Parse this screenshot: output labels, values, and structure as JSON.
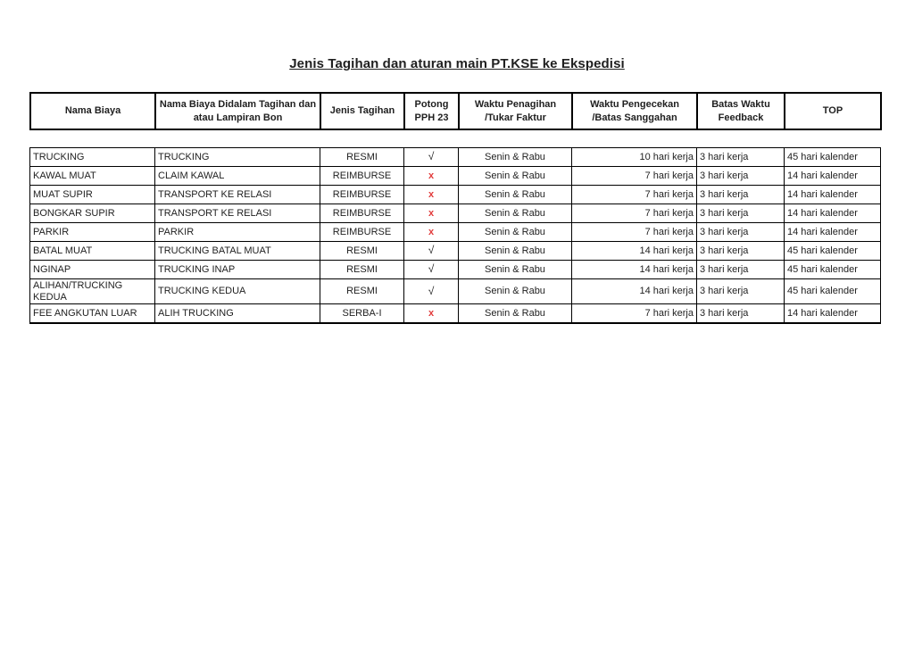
{
  "title": "Jenis Tagihan dan aturan main PT.KSE ke Ekspedisi",
  "colors": {
    "mark_cross_red": "#e23c3c",
    "text": "#1f1f1f",
    "border": "#000000"
  },
  "table": {
    "columns": [
      {
        "label": "Nama Biaya"
      },
      {
        "label": "Nama Biaya Didalam Tagihan dan atau Lampiran Bon"
      },
      {
        "label": "Jenis Tagihan"
      },
      {
        "label": "Potong PPH 23"
      },
      {
        "label": "Waktu Penagihan /Tukar Faktur"
      },
      {
        "label": "Waktu Pengecekan /Batas Sanggahan"
      },
      {
        "label": "Batas Waktu Feedback"
      },
      {
        "label": "TOP"
      }
    ],
    "rows": [
      {
        "cells": [
          "TRUCKING",
          "TRUCKING",
          "RESMI",
          "√",
          "Senin & Rabu",
          "10 hari kerja",
          "3 hari kerja",
          "45 hari kalender"
        ]
      },
      {
        "cells": [
          "KAWAL MUAT",
          "CLAIM KAWAL",
          "REIMBURSE",
          "x",
          "Senin & Rabu",
          "7 hari kerja",
          "3 hari kerja",
          "14 hari kalender"
        ]
      },
      {
        "cells": [
          "MUAT SUPIR",
          "TRANSPORT KE RELASI",
          "REIMBURSE",
          "x",
          "Senin & Rabu",
          "7 hari kerja",
          "3 hari kerja",
          "14 hari kalender"
        ]
      },
      {
        "cells": [
          "BONGKAR SUPIR",
          "TRANSPORT KE RELASI",
          "REIMBURSE",
          "x",
          "Senin & Rabu",
          "7 hari kerja",
          "3 hari kerja",
          "14 hari kalender"
        ]
      },
      {
        "cells": [
          "PARKIR",
          "PARKIR",
          "REIMBURSE",
          "x",
          "Senin & Rabu",
          "7 hari kerja",
          "3 hari kerja",
          "14 hari kalender"
        ]
      },
      {
        "cells": [
          "BATAL MUAT",
          "TRUCKING BATAL MUAT",
          "RESMI",
          "√",
          "Senin & Rabu",
          "14 hari kerja",
          "3 hari kerja",
          "45 hari kalender"
        ]
      },
      {
        "cells": [
          "NGINAP",
          "TRUCKING INAP",
          "RESMI",
          "√",
          "Senin & Rabu",
          "14 hari kerja",
          "3 hari kerja",
          "45 hari kalender"
        ]
      },
      {
        "cells": [
          "ALIHAN/TRUCKING KEDUA",
          "TRUCKING KEDUA",
          "RESMI",
          "√",
          "Senin & Rabu",
          "14 hari kerja",
          "3 hari kerja",
          "45 hari kalender"
        ]
      },
      {
        "cells": [
          "FEE ANGKUTAN LUAR",
          "ALIH TRUCKING",
          "SERBA-I",
          "x",
          "Senin & Rabu",
          "7 hari kerja",
          "3 hari kerja",
          "14 hari kalender"
        ]
      }
    ]
  }
}
